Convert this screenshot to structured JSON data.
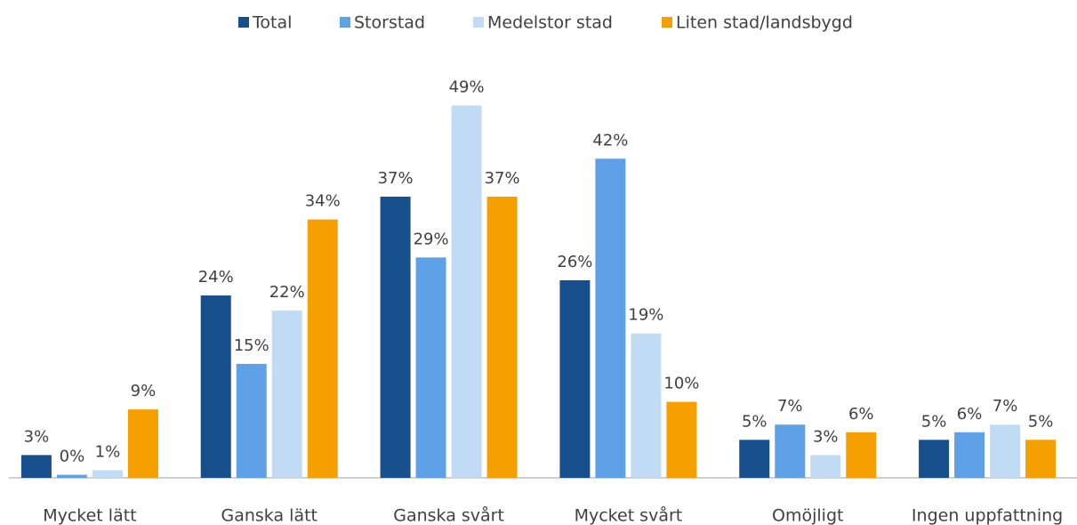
{
  "chart_data": {
    "type": "bar",
    "categories": [
      "Mycket lätt",
      "Ganska lätt",
      "Ganska svårt",
      "Mycket svårt",
      "Omöjligt",
      "Ingen uppfattning"
    ],
    "series": [
      {
        "name": "Total",
        "color": "#174f8c",
        "values": [
          3,
          24,
          37,
          26,
          5,
          5
        ],
        "value_labels": [
          "3%",
          "24%",
          "37%",
          "26%",
          "5%",
          "5%"
        ]
      },
      {
        "name": "Storstad",
        "color": "#5ea1e6",
        "values": [
          0.4,
          15,
          29,
          42,
          7,
          6
        ],
        "value_labels": [
          "0%",
          "15%",
          "29%",
          "42%",
          "7%",
          "6%"
        ]
      },
      {
        "name": "Medelstor stad",
        "color": "#c2dbf5",
        "values": [
          1,
          22,
          49,
          19,
          3,
          7
        ],
        "value_labels": [
          "1%",
          "22%",
          "49%",
          "19%",
          "3%",
          "7%"
        ]
      },
      {
        "name": "Liten stad/landsbygd",
        "color": "#f5a000",
        "values": [
          9,
          34,
          37,
          10,
          6,
          5
        ],
        "value_labels": [
          "9%",
          "34%",
          "37%",
          "10%",
          "6%",
          "5%"
        ]
      }
    ],
    "ylim": [
      0,
      50
    ],
    "legend": "top"
  }
}
